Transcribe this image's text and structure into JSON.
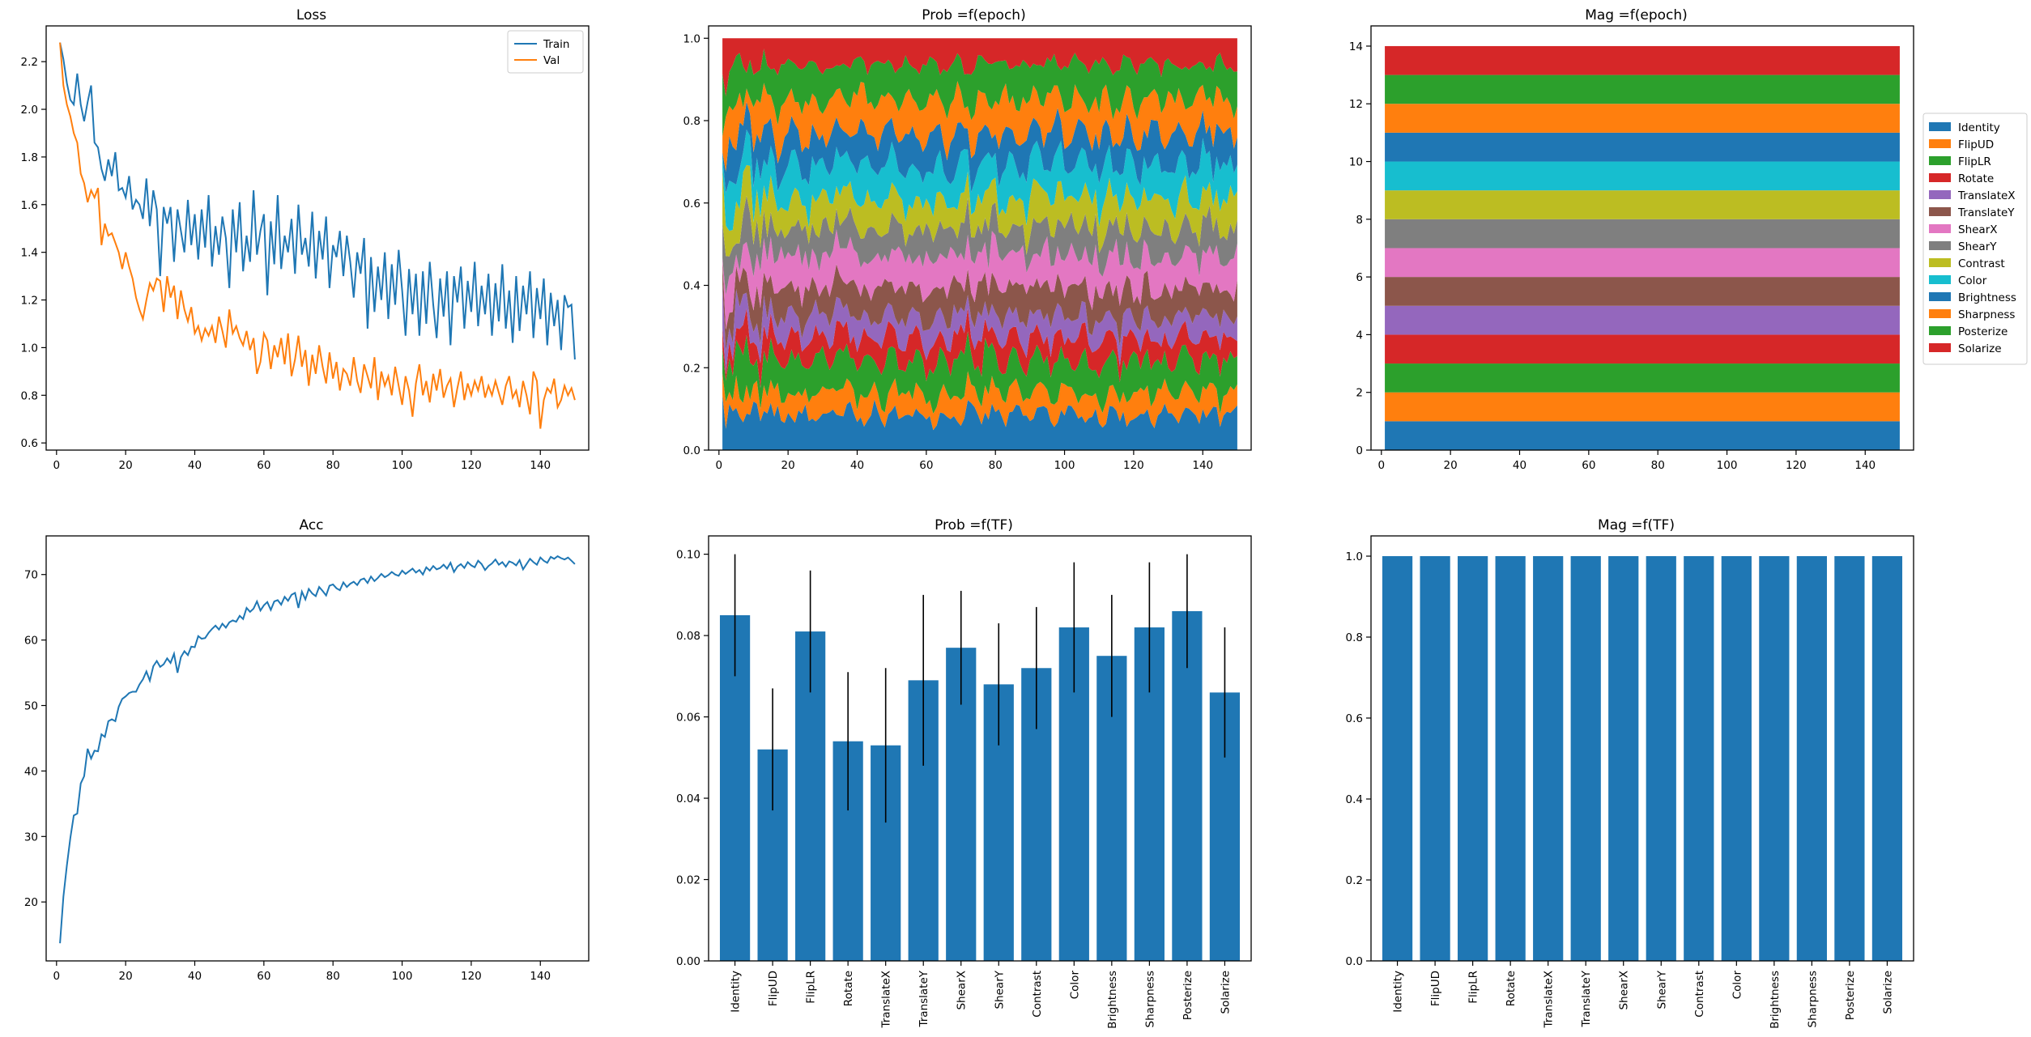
{
  "chart_data": [
    {
      "id": "loss",
      "type": "line",
      "title": "Loss",
      "xlabel": "",
      "ylabel": "",
      "xlim": [
        -3,
        154
      ],
      "ylim": [
        0.57,
        2.35
      ],
      "xticks": [
        0,
        20,
        40,
        60,
        80,
        100,
        120,
        140
      ],
      "yticks": [
        0.6,
        0.8,
        1.0,
        1.2,
        1.4,
        1.6,
        1.8,
        2.0,
        2.2
      ],
      "legend": "top-right",
      "grid": false,
      "series": [
        {
          "name": "Train",
          "color": "#1f77b4",
          "x_start": 1,
          "values": [
            2.28,
            2.21,
            2.11,
            2.04,
            2.02,
            2.15,
            2.02,
            1.95,
            2.03,
            2.1,
            1.86,
            1.84,
            1.75,
            1.7,
            1.79,
            1.72,
            1.82,
            1.66,
            1.67,
            1.63,
            1.72,
            1.58,
            1.62,
            1.6,
            1.54,
            1.71,
            1.51,
            1.66,
            1.58,
            1.3,
            1.59,
            1.52,
            1.59,
            1.36,
            1.58,
            1.49,
            1.4,
            1.62,
            1.43,
            1.56,
            1.37,
            1.58,
            1.42,
            1.64,
            1.34,
            1.51,
            1.39,
            1.55,
            1.46,
            1.25,
            1.58,
            1.4,
            1.61,
            1.32,
            1.47,
            1.36,
            1.66,
            1.39,
            1.49,
            1.56,
            1.22,
            1.53,
            1.35,
            1.64,
            1.33,
            1.47,
            1.4,
            1.54,
            1.31,
            1.6,
            1.39,
            1.46,
            1.34,
            1.57,
            1.29,
            1.49,
            1.37,
            1.55,
            1.25,
            1.43,
            1.38,
            1.49,
            1.3,
            1.47,
            1.36,
            1.21,
            1.4,
            1.31,
            1.46,
            1.08,
            1.38,
            1.15,
            1.34,
            1.2,
            1.4,
            1.12,
            1.35,
            1.18,
            1.41,
            1.24,
            1.05,
            1.33,
            1.14,
            1.31,
            1.05,
            1.32,
            1.1,
            1.36,
            1.18,
            1.04,
            1.29,
            1.13,
            1.32,
            1.01,
            1.3,
            1.19,
            1.34,
            1.08,
            1.28,
            1.15,
            1.36,
            1.09,
            1.26,
            1.14,
            1.31,
            1.05,
            1.27,
            1.11,
            1.35,
            1.08,
            1.24,
            1.02,
            1.3,
            1.07,
            1.26,
            1.14,
            1.32,
            1.04,
            1.25,
            1.12,
            1.29,
            1.01,
            1.23,
            1.09,
            1.2,
            0.99,
            1.22,
            1.17,
            1.18,
            0.95
          ]
        },
        {
          "name": "Val",
          "color": "#ff7f0e",
          "x_start": 1,
          "values": [
            2.28,
            2.1,
            2.02,
            1.97,
            1.9,
            1.86,
            1.73,
            1.69,
            1.61,
            1.66,
            1.63,
            1.67,
            1.43,
            1.52,
            1.47,
            1.48,
            1.44,
            1.4,
            1.33,
            1.4,
            1.34,
            1.29,
            1.21,
            1.16,
            1.12,
            1.2,
            1.27,
            1.24,
            1.29,
            1.28,
            1.15,
            1.3,
            1.21,
            1.26,
            1.12,
            1.24,
            1.16,
            1.11,
            1.17,
            1.06,
            1.09,
            1.03,
            1.08,
            1.05,
            1.09,
            1.02,
            1.13,
            1.07,
            1.0,
            1.16,
            1.06,
            1.09,
            1.04,
            1.01,
            1.07,
            0.99,
            1.04,
            0.89,
            0.94,
            1.06,
            1.03,
            0.91,
            1.01,
            0.96,
            1.04,
            0.93,
            1.06,
            0.88,
            0.95,
            1.05,
            0.92,
            0.99,
            0.84,
            0.97,
            0.89,
            1.01,
            0.92,
            0.85,
            0.98,
            0.87,
            0.94,
            0.82,
            0.91,
            0.89,
            0.84,
            0.96,
            0.86,
            0.81,
            0.93,
            0.88,
            0.83,
            0.96,
            0.78,
            0.9,
            0.84,
            0.88,
            0.8,
            0.92,
            0.84,
            0.76,
            0.88,
            0.82,
            0.71,
            0.85,
            0.93,
            0.8,
            0.86,
            0.77,
            0.89,
            0.82,
            0.91,
            0.79,
            0.84,
            0.87,
            0.75,
            0.83,
            0.9,
            0.78,
            0.85,
            0.8,
            0.86,
            0.82,
            0.88,
            0.79,
            0.84,
            0.8,
            0.86,
            0.81,
            0.76,
            0.84,
            0.88,
            0.79,
            0.82,
            0.75,
            0.86,
            0.8,
            0.72,
            0.9,
            0.86,
            0.66,
            0.78,
            0.83,
            0.81,
            0.87,
            0.75,
            0.78,
            0.84,
            0.8,
            0.83,
            0.78
          ]
        }
      ]
    },
    {
      "id": "prob_epoch",
      "type": "area",
      "stacked": true,
      "title": "Prob =f(epoch)",
      "xlabel": "",
      "ylabel": "",
      "xlim": [
        -3,
        154
      ],
      "ylim": [
        0,
        1.03
      ],
      "xticks": [
        0,
        20,
        40,
        60,
        80,
        100,
        120,
        140
      ],
      "yticks": [
        0.0,
        0.2,
        0.4,
        0.6,
        0.8,
        1.0
      ],
      "x_range": [
        1,
        150
      ],
      "grid": false,
      "note_values": "per-epoch stacked probabilities of the 14 transforms; each series oscillates around its mean shown in Prob =f(TF)",
      "series": [
        {
          "name": "Identity",
          "color": "#1f77b4",
          "mean": 0.085
        },
        {
          "name": "FlipUD",
          "color": "#ff7f0e",
          "mean": 0.052
        },
        {
          "name": "FlipLR",
          "color": "#2ca02c",
          "mean": 0.081
        },
        {
          "name": "Rotate",
          "color": "#d62728",
          "mean": 0.054
        },
        {
          "name": "TranslateX",
          "color": "#9467bd",
          "mean": 0.053
        },
        {
          "name": "TranslateY",
          "color": "#8c564b",
          "mean": 0.069
        },
        {
          "name": "ShearX",
          "color": "#e377c2",
          "mean": 0.077
        },
        {
          "name": "ShearY",
          "color": "#7f7f7f",
          "mean": 0.068
        },
        {
          "name": "Contrast",
          "color": "#bcbd22",
          "mean": 0.072
        },
        {
          "name": "Color",
          "color": "#17becf",
          "mean": 0.082
        },
        {
          "name": "Brightness",
          "color": "#1f77b4",
          "mean": 0.075
        },
        {
          "name": "Sharpness",
          "color": "#ff7f0e",
          "mean": 0.082
        },
        {
          "name": "Posterize",
          "color": "#2ca02c",
          "mean": 0.086
        },
        {
          "name": "Solarize",
          "color": "#d62728",
          "mean": 0.066
        }
      ]
    },
    {
      "id": "mag_epoch",
      "type": "area",
      "stacked": true,
      "title": "Mag =f(epoch)",
      "xlabel": "",
      "ylabel": "",
      "xlim": [
        -3,
        154
      ],
      "ylim": [
        0,
        14.7
      ],
      "xticks": [
        0,
        20,
        40,
        60,
        80,
        100,
        120,
        140
      ],
      "yticks": [
        0,
        2,
        4,
        6,
        8,
        10,
        12,
        14
      ],
      "x_range": [
        1,
        150
      ],
      "legend": "outside-right",
      "grid": false,
      "series": [
        {
          "name": "Identity",
          "color": "#1f77b4",
          "value": 1.0
        },
        {
          "name": "FlipUD",
          "color": "#ff7f0e",
          "value": 1.0
        },
        {
          "name": "FlipLR",
          "color": "#2ca02c",
          "value": 1.0
        },
        {
          "name": "Rotate",
          "color": "#d62728",
          "value": 1.0
        },
        {
          "name": "TranslateX",
          "color": "#9467bd",
          "value": 1.0
        },
        {
          "name": "TranslateY",
          "color": "#8c564b",
          "value": 1.0
        },
        {
          "name": "ShearX",
          "color": "#e377c2",
          "value": 1.0
        },
        {
          "name": "ShearY",
          "color": "#7f7f7f",
          "value": 1.0
        },
        {
          "name": "Contrast",
          "color": "#bcbd22",
          "value": 1.0
        },
        {
          "name": "Color",
          "color": "#17becf",
          "value": 1.0
        },
        {
          "name": "Brightness",
          "color": "#1f77b4",
          "value": 1.0
        },
        {
          "name": "Sharpness",
          "color": "#ff7f0e",
          "value": 1.0
        },
        {
          "name": "Posterize",
          "color": "#2ca02c",
          "value": 1.0
        },
        {
          "name": "Solarize",
          "color": "#d62728",
          "value": 1.0
        }
      ]
    },
    {
      "id": "acc",
      "type": "line",
      "title": "Acc",
      "xlabel": "",
      "ylabel": "",
      "xlim": [
        -3,
        154
      ],
      "ylim": [
        11.0,
        75.9
      ],
      "xticks": [
        0,
        20,
        40,
        60,
        80,
        100,
        120,
        140
      ],
      "yticks": [
        20,
        30,
        40,
        50,
        60,
        70
      ],
      "grid": false,
      "series": [
        {
          "name": "",
          "color": "#1f77b4",
          "x_start": 1,
          "values": [
            13.7,
            20.8,
            25.6,
            29.8,
            33.2,
            33.5,
            38.1,
            39.2,
            43.4,
            41.9,
            43.1,
            43.0,
            45.6,
            45.2,
            47.6,
            47.9,
            47.6,
            49.8,
            51.0,
            51.4,
            51.9,
            52.1,
            52.1,
            53.2,
            54.0,
            55.2,
            53.8,
            56.0,
            56.8,
            55.9,
            56.3,
            57.2,
            56.5,
            57.9,
            55.0,
            57.4,
            58.3,
            57.7,
            59.0,
            58.9,
            60.6,
            60.2,
            60.3,
            61.1,
            61.7,
            62.2,
            61.6,
            62.5,
            61.9,
            62.7,
            63.0,
            62.8,
            63.7,
            63.2,
            64.9,
            64.3,
            64.8,
            65.9,
            64.5,
            65.3,
            65.8,
            64.6,
            65.9,
            66.1,
            65.4,
            66.6,
            66.0,
            66.9,
            67.2,
            64.9,
            67.4,
            66.2,
            67.8,
            67.1,
            66.7,
            68.1,
            67.5,
            66.8,
            68.3,
            68.5,
            67.9,
            67.6,
            68.8,
            68.1,
            68.6,
            68.9,
            68.4,
            69.2,
            69.4,
            68.7,
            69.7,
            69.0,
            69.5,
            70.1,
            69.6,
            69.9,
            70.4,
            70.0,
            69.8,
            70.6,
            70.1,
            70.5,
            70.9,
            70.3,
            70.7,
            70.0,
            71.1,
            70.6,
            71.3,
            70.8,
            71.0,
            71.5,
            70.9,
            71.8,
            70.4,
            71.2,
            71.6,
            71.0,
            71.9,
            71.4,
            71.1,
            72.1,
            71.6,
            70.7,
            71.3,
            71.7,
            72.3,
            71.5,
            71.9,
            71.2,
            72.0,
            71.8,
            71.4,
            72.2,
            70.8,
            71.6,
            72.4,
            71.9,
            71.5,
            72.6,
            72.1,
            71.8,
            72.7,
            72.4,
            72.8,
            72.5,
            72.3,
            72.6,
            72.1,
            71.6
          ]
        }
      ]
    },
    {
      "id": "prob_tf",
      "type": "bar",
      "title": "Prob =f(TF)",
      "xlabel": "",
      "ylabel": "",
      "ylim": [
        0,
        0.1045
      ],
      "yticks": [
        0.0,
        0.02,
        0.04,
        0.06,
        0.08,
        0.1
      ],
      "ytick_labels": [
        "0.00",
        "0.02",
        "0.04",
        "0.06",
        "0.08",
        "0.10"
      ],
      "bar_color": "#1f77b4",
      "errorbar_color": "#000000",
      "categories": [
        "Identity",
        "FlipUD",
        "FlipLR",
        "Rotate",
        "TranslateX",
        "TranslateY",
        "ShearX",
        "ShearY",
        "Contrast",
        "Color",
        "Brightness",
        "Sharpness",
        "Posterize",
        "Solarize"
      ],
      "values": [
        0.085,
        0.052,
        0.081,
        0.054,
        0.053,
        0.069,
        0.077,
        0.068,
        0.072,
        0.082,
        0.075,
        0.082,
        0.086,
        0.066
      ],
      "errors": [
        0.015,
        0.015,
        0.015,
        0.017,
        0.019,
        0.021,
        0.014,
        0.015,
        0.015,
        0.016,
        0.015,
        0.016,
        0.014,
        0.016
      ]
    },
    {
      "id": "mag_tf",
      "type": "bar",
      "title": "Mag =f(TF)",
      "xlabel": "",
      "ylabel": "",
      "ylim": [
        0,
        1.05
      ],
      "yticks": [
        0.0,
        0.2,
        0.4,
        0.6,
        0.8,
        1.0
      ],
      "ytick_labels": [
        "0.0",
        "0.2",
        "0.4",
        "0.6",
        "0.8",
        "1.0"
      ],
      "bar_color": "#1f77b4",
      "categories": [
        "Identity",
        "FlipUD",
        "FlipLR",
        "Rotate",
        "TranslateX",
        "TranslateY",
        "ShearX",
        "ShearY",
        "Contrast",
        "Color",
        "Brightness",
        "Sharpness",
        "Posterize",
        "Solarize"
      ],
      "values": [
        1.0,
        1.0,
        1.0,
        1.0,
        1.0,
        1.0,
        1.0,
        1.0,
        1.0,
        1.0,
        1.0,
        1.0,
        1.0,
        1.0
      ]
    }
  ]
}
